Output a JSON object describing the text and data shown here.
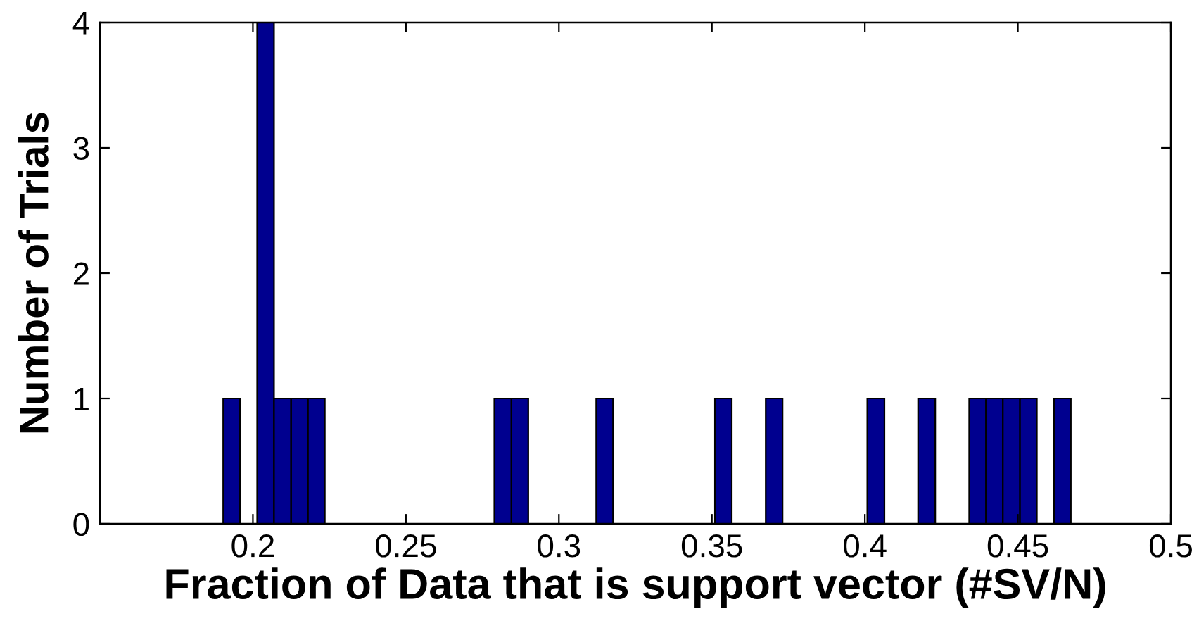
{
  "chart_data": {
    "type": "histogram",
    "xlabel": "Fraction of Data that is support vector (#SV/N)",
    "ylabel": "Number of Trials",
    "bins": [
      0.1903,
      0.1958,
      0.2014,
      0.2069,
      0.2125,
      0.218,
      0.2235,
      0.2291,
      0.2346,
      0.2402,
      0.2457,
      0.2512,
      0.2568,
      0.2623,
      0.2679,
      0.2734,
      0.2789,
      0.2845,
      0.29,
      0.2956,
      0.3011,
      0.3066,
      0.3122,
      0.3177,
      0.3233,
      0.3288,
      0.3343,
      0.3399,
      0.3454,
      0.351,
      0.3565,
      0.362,
      0.3676,
      0.3731,
      0.3787,
      0.3842,
      0.3897,
      0.3953,
      0.4008,
      0.4064,
      0.4119,
      0.4174,
      0.423,
      0.4285,
      0.4341,
      0.4396,
      0.4451,
      0.4507,
      0.4562,
      0.4618,
      0.4673
    ],
    "values": [
      1,
      0,
      4,
      1,
      1,
      1,
      0,
      0,
      0,
      0,
      0,
      0,
      0,
      0,
      0,
      0,
      1,
      1,
      0,
      0,
      0,
      0,
      1,
      0,
      0,
      0,
      0,
      0,
      0,
      1,
      0,
      0,
      1,
      0,
      0,
      0,
      0,
      0,
      1,
      0,
      0,
      1,
      0,
      0,
      1,
      1,
      1,
      1,
      0,
      1
    ],
    "color": "#00008f",
    "xlim": [
      0.15,
      0.5
    ],
    "xticks": [
      0.2,
      0.25,
      0.3,
      0.35,
      0.4,
      0.45,
      0.5
    ],
    "ylim": [
      0,
      4
    ],
    "yticks": [
      0,
      1,
      2,
      3,
      4
    ]
  }
}
